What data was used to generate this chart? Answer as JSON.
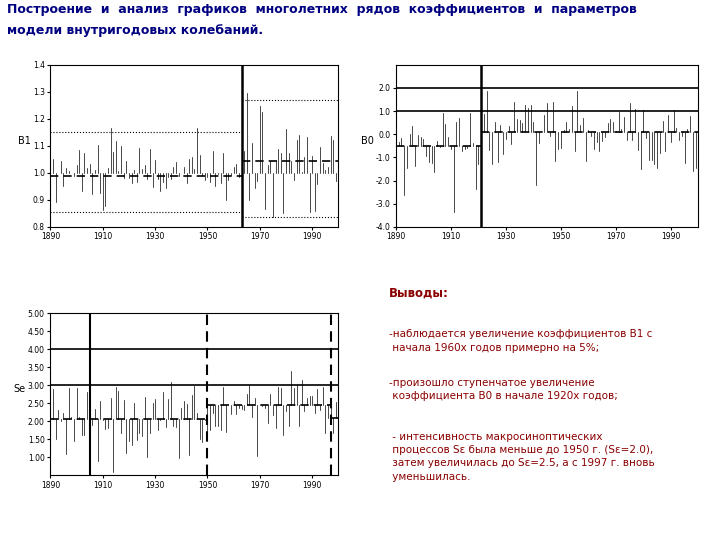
{
  "title_line1": "Построение  и  анализ  графиков  многолетних  рядов  коэффициентов  и  параметров",
  "title_line2": "модели внутригодовых колебаний.",
  "title_fontsize": 9,
  "title_color": "#000080",
  "bg_color": "#ffffff",
  "plot1": {
    "ylabel": "B1",
    "xlim": [
      1890,
      2000
    ],
    "ylim": [
      0.8,
      1.4
    ],
    "yticks": [
      0.8,
      0.9,
      1.0,
      1.1,
      1.2,
      1.3,
      1.4
    ],
    "ytick_labels": [
      "0.8",
      "0.9",
      "1.0",
      "1.1",
      "1.2",
      "1.3",
      "1.4"
    ],
    "xticks": [
      1890,
      1910,
      1930,
      1950,
      1970,
      1990
    ],
    "vline": 1963,
    "dashed_mean1": 0.99,
    "dashed_mean2": 1.045,
    "upper_dot1": 1.15,
    "lower_dot1": 0.855,
    "upper_dot2": 1.27,
    "lower_dot2": 0.835
  },
  "plot2": {
    "ylabel": "B0",
    "xlim": [
      1890,
      2000
    ],
    "ylim": [
      -4.0,
      3.0
    ],
    "yticks": [
      -4.0,
      -3.0,
      -2.0,
      -1.0,
      0.0,
      1.0,
      2.0
    ],
    "ytick_labels": [
      "-4.0",
      "-3.0",
      "-2.0",
      "-1.0",
      "0.0",
      "1.0",
      "2.0"
    ],
    "xticks": [
      1890,
      1910,
      1930,
      1950,
      1970,
      1990
    ],
    "vline": 1921,
    "dashed_mean1": -0.5,
    "dashed_mean2": 0.1,
    "hline1": 1.0,
    "hline2": 2.0
  },
  "plot3": {
    "ylabel": "Se",
    "xlim": [
      1890,
      2000
    ],
    "ylim": [
      0.5,
      5.0
    ],
    "yticks": [
      1.0,
      1.5,
      2.0,
      2.5,
      3.0,
      3.5,
      4.0,
      4.5,
      5.0
    ],
    "ytick_labels": [
      "1.00",
      "1.50",
      "2.00",
      "2.50",
      "3.00",
      "3.50",
      "4.00",
      "4.50",
      "5.00"
    ],
    "xticks": [
      1890,
      1910,
      1930,
      1950,
      1970,
      1990
    ],
    "hline1": 4.0,
    "hline2": 3.0,
    "dashed_mean1": 2.05,
    "dashed_mean2": 2.45,
    "dashed_mean3": 2.1,
    "vline1": 1905,
    "vline2": 1950,
    "vline3": 1997
  },
  "conclusions_title": "Выводы:",
  "conclusions": [
    "-наблюдается увеличение коэффициентов B1 с\n начала 1960х годов примерно на 5%;",
    "-произошло ступенчатое увеличение\n коэффициента B0 в начале 1920х годов;",
    " - интенсивность макросиноптических\n процессов Sε была меньше до 1950 г. (Sε=2.0),\n затем увеличилась до Sε=2.5, а с 1997 г. вновь\n уменьшилась."
  ]
}
